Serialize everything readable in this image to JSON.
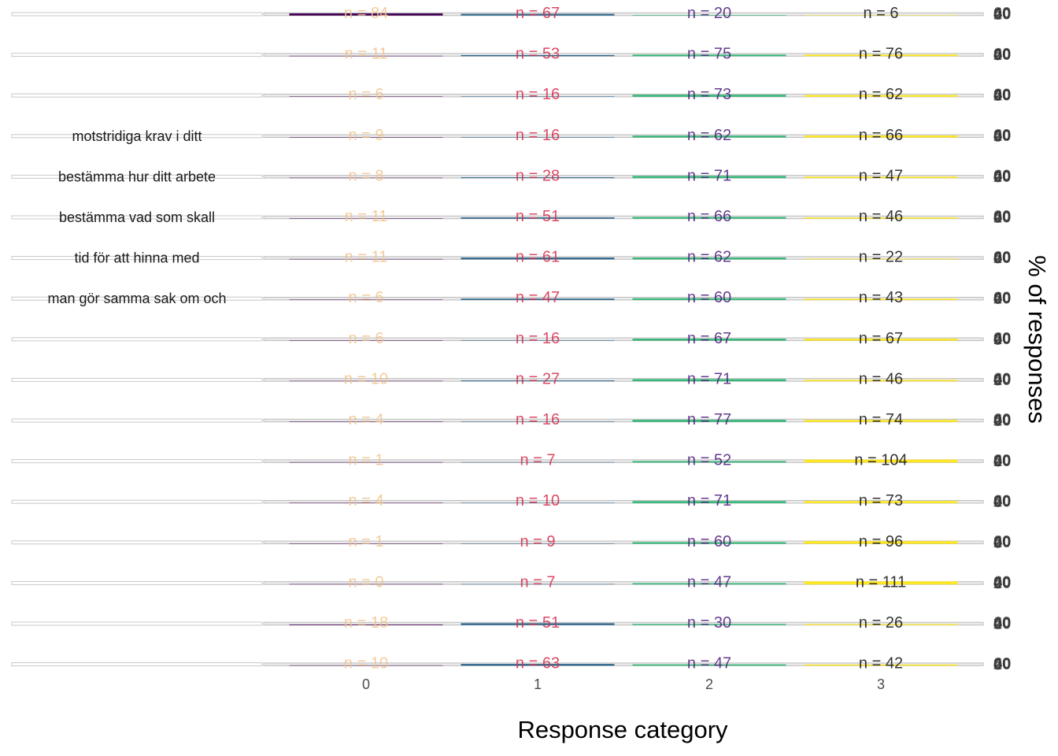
{
  "chart_data": {
    "type": "bar",
    "xlabel": "Response category",
    "ylabel": "% of responses",
    "categories": [
      "0",
      "1",
      "2",
      "3"
    ],
    "colors": [
      "#440154",
      "#3B528B",
      "#21908C",
      "#5DC863",
      "#FDE725"
    ],
    "bar_colors": [
      "#440154",
      "#31688E",
      "#35B779",
      "#FDE725"
    ],
    "n_label_colors": [
      "#F2C38A",
      "#D62B4B",
      "#4B1B7A",
      "#111111"
    ],
    "panel_ymax": 60,
    "side_ticks": [
      "0",
      "20",
      "40",
      "60"
    ],
    "items": [
      {
        "label": "",
        "counts": [
          84,
          67,
          20,
          6
        ]
      },
      {
        "label": "",
        "counts": [
          11,
          53,
          75,
          76
        ]
      },
      {
        "label": "",
        "counts": [
          6,
          16,
          73,
          62
        ]
      },
      {
        "label": "motstridiga krav i ditt",
        "counts": [
          9,
          16,
          62,
          66
        ]
      },
      {
        "label": "bestämma hur ditt arbete",
        "counts": [
          8,
          28,
          71,
          47
        ]
      },
      {
        "label": "bestämma vad som skall",
        "counts": [
          11,
          51,
          66,
          46
        ]
      },
      {
        "label": "tid för att hinna med",
        "counts": [
          11,
          61,
          62,
          22
        ]
      },
      {
        "label": "man gör samma sak om och",
        "counts": [
          6,
          47,
          60,
          43
        ]
      },
      {
        "label": "",
        "counts": [
          6,
          16,
          67,
          67
        ]
      },
      {
        "label": "",
        "counts": [
          10,
          27,
          71,
          46
        ]
      },
      {
        "label": "",
        "counts": [
          4,
          16,
          77,
          74
        ]
      },
      {
        "label": "",
        "counts": [
          1,
          7,
          52,
          104
        ]
      },
      {
        "label": "",
        "counts": [
          4,
          10,
          71,
          73
        ]
      },
      {
        "label": "",
        "counts": [
          1,
          9,
          60,
          96
        ]
      },
      {
        "label": "",
        "counts": [
          0,
          7,
          47,
          111
        ]
      },
      {
        "label": "",
        "counts": [
          18,
          51,
          30,
          26
        ]
      },
      {
        "label": "",
        "counts": [
          10,
          63,
          47,
          42
        ]
      }
    ]
  }
}
